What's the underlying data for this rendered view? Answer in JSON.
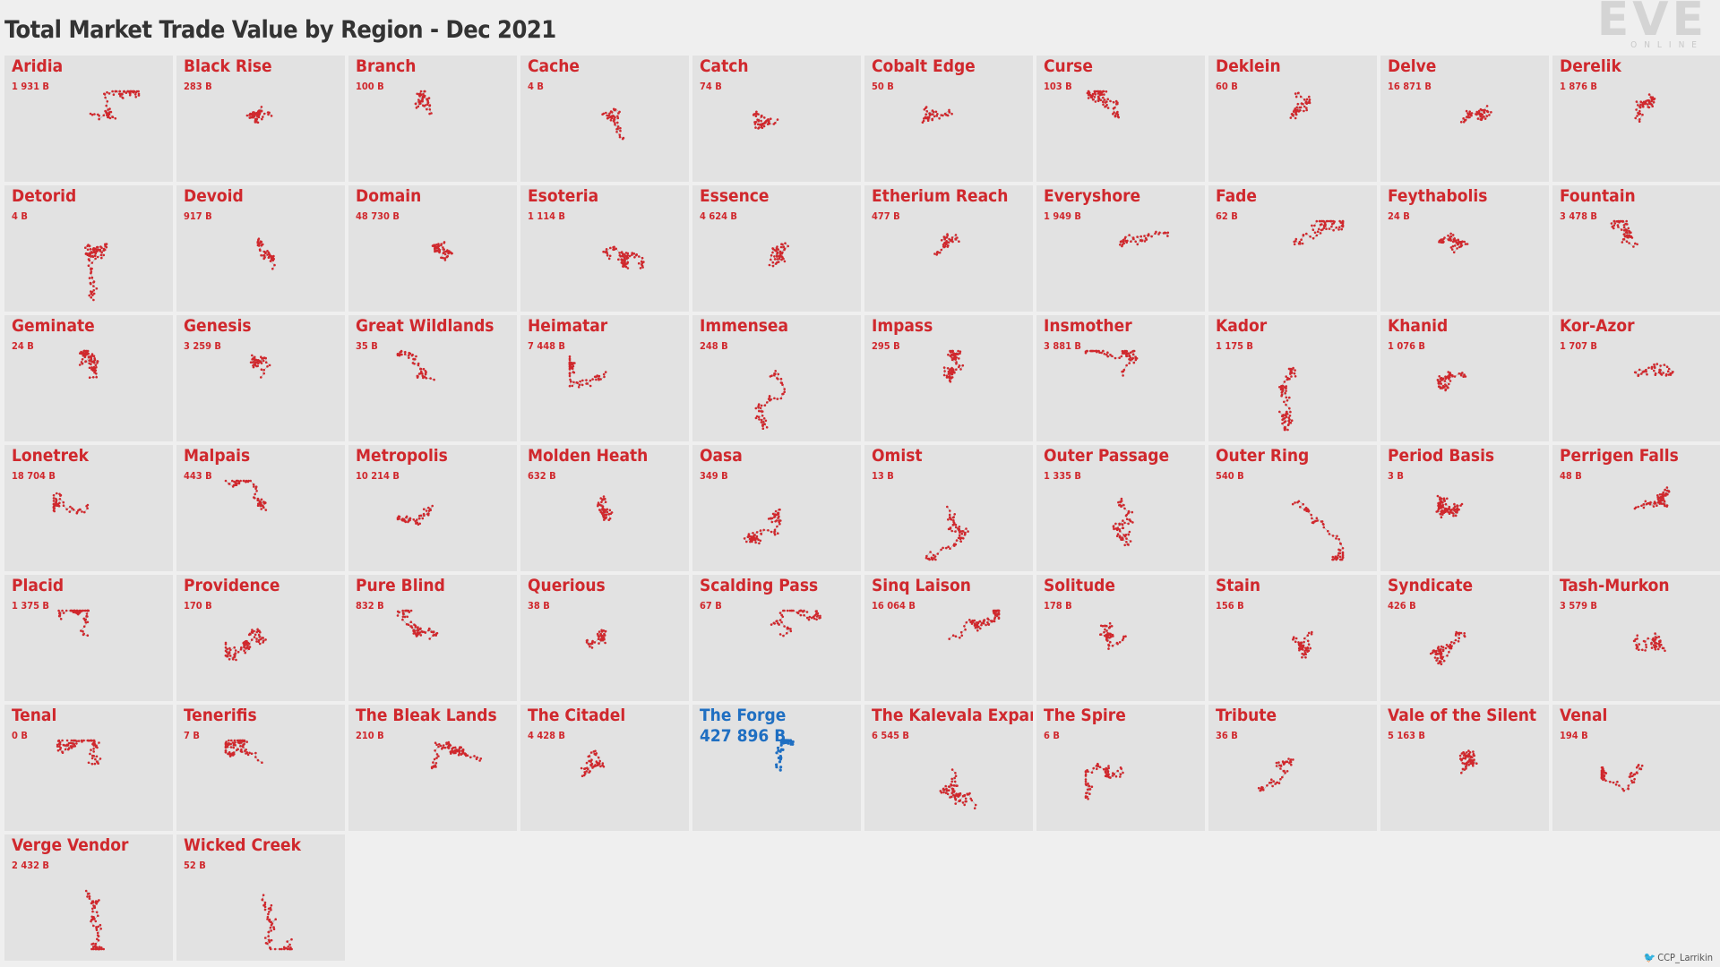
{
  "title": "Total Market Trade Value by Region - Dec 2021",
  "logo": {
    "text": "EVE",
    "sub": "ONLINE"
  },
  "credit": {
    "icon": "twitter-icon",
    "handle": "CCP_Larrikin"
  },
  "colors": {
    "normal": "#d0282d",
    "highlight": "#1f6fc2",
    "tile": "#e2e2e2",
    "edge": "#b5b5b5"
  },
  "chart_data": {
    "type": "small-multiples scatter (region system maps)",
    "unit": "B",
    "highlight": "The Forge",
    "regions": [
      {
        "name": "Aridia",
        "value": "1 931 B"
      },
      {
        "name": "Black Rise",
        "value": "283 B"
      },
      {
        "name": "Branch",
        "value": "100 B"
      },
      {
        "name": "Cache",
        "value": "4 B"
      },
      {
        "name": "Catch",
        "value": "74 B"
      },
      {
        "name": "Cobalt Edge",
        "value": "50 B"
      },
      {
        "name": "Curse",
        "value": "103 B"
      },
      {
        "name": "Deklein",
        "value": "60 B"
      },
      {
        "name": "Delve",
        "value": "16 871 B"
      },
      {
        "name": "Derelik",
        "value": "1 876 B"
      },
      {
        "name": "Detorid",
        "value": "4 B"
      },
      {
        "name": "Devoid",
        "value": "917 B"
      },
      {
        "name": "Domain",
        "value": "48 730 B"
      },
      {
        "name": "Esoteria",
        "value": "1 114 B"
      },
      {
        "name": "Essence",
        "value": "4 624 B"
      },
      {
        "name": "Etherium Reach",
        "value": "477 B"
      },
      {
        "name": "Everyshore",
        "value": "1 949 B"
      },
      {
        "name": "Fade",
        "value": "62 B"
      },
      {
        "name": "Feythabolis",
        "value": "24 B"
      },
      {
        "name": "Fountain",
        "value": "3 478 B"
      },
      {
        "name": "Geminate",
        "value": "24 B"
      },
      {
        "name": "Genesis",
        "value": "3 259 B"
      },
      {
        "name": "Great Wildlands",
        "value": "35 B"
      },
      {
        "name": "Heimatar",
        "value": "7 448 B"
      },
      {
        "name": "Immensea",
        "value": "248 B"
      },
      {
        "name": "Impass",
        "value": "295 B"
      },
      {
        "name": "Insmother",
        "value": "3 881 B"
      },
      {
        "name": "Kador",
        "value": "1 175 B"
      },
      {
        "name": "Khanid",
        "value": "1 076 B"
      },
      {
        "name": "Kor-Azor",
        "value": "1 707 B"
      },
      {
        "name": "Lonetrek",
        "value": "18 704 B"
      },
      {
        "name": "Malpais",
        "value": "443 B"
      },
      {
        "name": "Metropolis",
        "value": "10 214 B"
      },
      {
        "name": "Molden Heath",
        "value": "632 B"
      },
      {
        "name": "Oasa",
        "value": "349 B"
      },
      {
        "name": "Omist",
        "value": "13 B"
      },
      {
        "name": "Outer Passage",
        "value": "1 335 B"
      },
      {
        "name": "Outer Ring",
        "value": "540 B"
      },
      {
        "name": "Period Basis",
        "value": "3 B"
      },
      {
        "name": "Perrigen Falls",
        "value": "48 B"
      },
      {
        "name": "Placid",
        "value": "1 375 B"
      },
      {
        "name": "Providence",
        "value": "170 B"
      },
      {
        "name": "Pure Blind",
        "value": "832 B"
      },
      {
        "name": "Querious",
        "value": "38 B"
      },
      {
        "name": "Scalding Pass",
        "value": "67 B"
      },
      {
        "name": "Sinq Laison",
        "value": "16 064 B"
      },
      {
        "name": "Solitude",
        "value": "178 B"
      },
      {
        "name": "Stain",
        "value": "156 B"
      },
      {
        "name": "Syndicate",
        "value": "426 B"
      },
      {
        "name": "Tash-Murkon",
        "value": "3 579 B"
      },
      {
        "name": "Tenal",
        "value": "0 B"
      },
      {
        "name": "Tenerifis",
        "value": "7 B"
      },
      {
        "name": "The Bleak Lands",
        "value": "210 B"
      },
      {
        "name": "The Citadel",
        "value": "4 428 B"
      },
      {
        "name": "The Forge",
        "value": "427 896 B"
      },
      {
        "name": "The Kalevala Expanse",
        "value": "6 545 B"
      },
      {
        "name": "The Spire",
        "value": "6 B"
      },
      {
        "name": "Tribute",
        "value": "36 B"
      },
      {
        "name": "Vale of the Silent",
        "value": "5 163 B"
      },
      {
        "name": "Venal",
        "value": "194 B"
      },
      {
        "name": "Verge Vendor",
        "value": "2 432 B"
      },
      {
        "name": "Wicked Creek",
        "value": "52 B"
      }
    ]
  }
}
